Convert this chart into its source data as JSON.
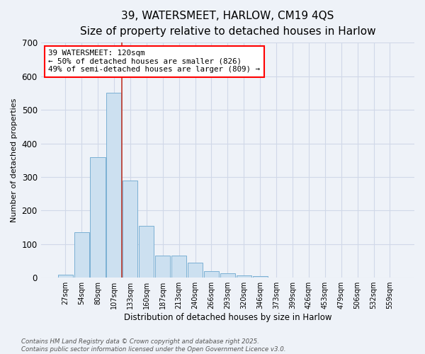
{
  "title": "39, WATERSMEET, HARLOW, CM19 4QS",
  "subtitle": "Size of property relative to detached houses in Harlow",
  "xlabel": "Distribution of detached houses by size in Harlow",
  "ylabel": "Number of detached properties",
  "bar_labels": [
    "27sqm",
    "54sqm",
    "80sqm",
    "107sqm",
    "133sqm",
    "160sqm",
    "187sqm",
    "213sqm",
    "240sqm",
    "266sqm",
    "293sqm",
    "320sqm",
    "346sqm",
    "373sqm",
    "399sqm",
    "426sqm",
    "453sqm",
    "479sqm",
    "506sqm",
    "532sqm",
    "559sqm"
  ],
  "bar_values": [
    8,
    135,
    360,
    550,
    290,
    155,
    65,
    65,
    45,
    20,
    13,
    7,
    4,
    1,
    0,
    0,
    0,
    0,
    0,
    0,
    0
  ],
  "bar_color": "#cce0f0",
  "bar_edgecolor": "#7ab0d4",
  "red_line_x": 3.5,
  "annotation_text": "39 WATERSMEET: 120sqm\n← 50% of detached houses are smaller (826)\n49% of semi-detached houses are larger (809) →",
  "annotation_box_color": "white",
  "annotation_box_edgecolor": "red",
  "red_line_color": "#c0392b",
  "footnote1": "Contains HM Land Registry data © Crown copyright and database right 2025.",
  "footnote2": "Contains public sector information licensed under the Open Government Licence v3.0.",
  "ylim": [
    0,
    700
  ],
  "yticks": [
    0,
    100,
    200,
    300,
    400,
    500,
    600,
    700
  ],
  "background_color": "#eef2f8",
  "title_fontsize": 11,
  "subtitle_fontsize": 9.5,
  "grid_color": "#d0d8e8"
}
